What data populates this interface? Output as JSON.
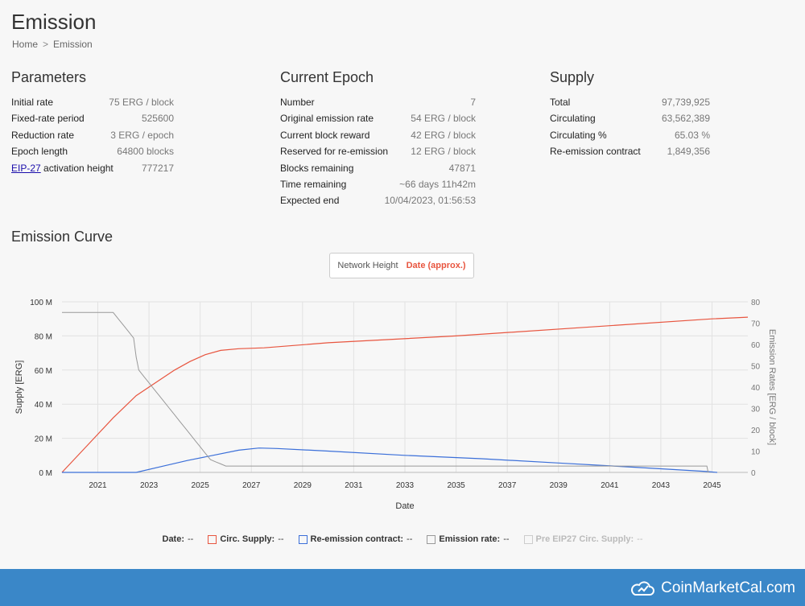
{
  "page": {
    "title": "Emission",
    "breadcrumb": [
      "Home",
      "Emission"
    ]
  },
  "parameters": {
    "title": "Parameters",
    "rows": [
      {
        "label": "Initial rate",
        "value": "75 ERG / block"
      },
      {
        "label": "Fixed-rate period",
        "value": "525600"
      },
      {
        "label": "Reduction rate",
        "value": "3 ERG / epoch"
      },
      {
        "label": "Epoch length",
        "value": "64800 blocks"
      },
      {
        "label_link": "EIP-27",
        "label_rest": " activation height",
        "value": "777217"
      }
    ]
  },
  "current_epoch": {
    "title": "Current Epoch",
    "rows": [
      {
        "label": "Number",
        "value": "7"
      },
      {
        "label": "Original emission rate",
        "value": "54 ERG / block"
      },
      {
        "label": "Current block reward",
        "value": "42 ERG / block"
      },
      {
        "label": "Reserved for re-emission",
        "value": "12 ERG / block"
      },
      {
        "label": "Blocks remaining",
        "value": "47871"
      },
      {
        "label": "Time remaining",
        "value": "~66 days 11h42m"
      },
      {
        "label": "Expected end",
        "value": "10/04/2023, 01:56:53"
      }
    ]
  },
  "supply": {
    "title": "Supply",
    "rows": [
      {
        "label": "Total",
        "value": "97,739,925"
      },
      {
        "label": "Circulating",
        "value": "63,562,389"
      },
      {
        "label": "Circulating %",
        "value": "65.03 %"
      },
      {
        "label": "Re-emission contract",
        "value": "1,849,356"
      }
    ]
  },
  "emission_curve": {
    "title": "Emission Curve",
    "toggle": {
      "options": [
        "Network Height",
        "Date (approx.)"
      ],
      "selected": "Date (approx.)"
    }
  },
  "legend": {
    "date_label": "Date:",
    "date_value": "--",
    "items": [
      {
        "label": "Circ. Supply:",
        "value": "--",
        "color": "#e8553f",
        "enabled": true
      },
      {
        "label": "Re-emission contract:",
        "value": "--",
        "color": "#3b6fd9",
        "enabled": true
      },
      {
        "label": "Emission rate:",
        "value": "--",
        "color": "#999999",
        "enabled": true
      },
      {
        "label": "Pre EIP27 Circ. Supply:",
        "value": "--",
        "color": "#cccccc",
        "enabled": false
      }
    ]
  },
  "footer": {
    "brand": "CoinMarketCal.com"
  },
  "chart_data": {
    "type": "line",
    "xlabel": "Date",
    "ylabel": "Supply [ERG]",
    "y2label": "Emission Rates [ERG / block]",
    "xlim": [
      2019.6,
      2046.4
    ],
    "ylim": [
      0,
      100
    ],
    "y2lim": [
      0,
      80
    ],
    "x_ticks": [
      "2021",
      "2023",
      "2025",
      "2027",
      "2029",
      "2031",
      "2033",
      "2035",
      "2037",
      "2039",
      "2041",
      "2043",
      "2045"
    ],
    "y_ticks": [
      "0 M",
      "20 M",
      "40 M",
      "60 M",
      "80 M",
      "100 M"
    ],
    "y2_ticks": [
      "0",
      "10",
      "20",
      "30",
      "40",
      "50",
      "60",
      "70",
      "80"
    ],
    "colors": {
      "supply": "#e8553f",
      "reemission": "#3b6fd9",
      "rate": "#999999"
    },
    "series": [
      {
        "name": "Circ. Supply",
        "axis": "left",
        "x": [
          2019.6,
          2020.6,
          2021.6,
          2022.5,
          2023.3,
          2024.0,
          2024.6,
          2025.2,
          2025.8,
          2026.5,
          2027.5,
          2030,
          2035,
          2040,
          2045,
          2046.4
        ],
        "y": [
          0,
          16,
          32,
          45,
          53,
          60,
          65,
          69,
          71.5,
          72.5,
          73,
          76,
          80,
          85,
          90,
          91
        ]
      },
      {
        "name": "Re-emission contract",
        "axis": "left",
        "x": [
          2019.6,
          2022.5,
          2023.5,
          2024.5,
          2025.5,
          2026.5,
          2027.3,
          2028,
          2030,
          2033,
          2036,
          2039,
          2042,
          2044.8,
          2045.2
        ],
        "y": [
          0,
          0,
          3.5,
          7,
          10,
          13,
          14.3,
          14,
          12.5,
          10,
          8,
          5.5,
          3,
          0.5,
          0
        ]
      },
      {
        "name": "Emission rate",
        "axis": "right",
        "x": [
          2019.6,
          2021.6,
          2021.8,
          2022.0,
          2022.2,
          2022.4,
          2022.5,
          2022.6,
          2022.8,
          2023.0,
          2023.2,
          2023.4,
          2023.6,
          2023.8,
          2024.0,
          2024.2,
          2024.4,
          2024.6,
          2024.8,
          2025.0,
          2025.2,
          2025.4,
          2025.6,
          2025.8,
          2026.0,
          2026.2,
          2044.8,
          2044.85
        ],
        "y": [
          75,
          75,
          72,
          69,
          66,
          63,
          54,
          48,
          45,
          42,
          39,
          36,
          33,
          30,
          27,
          24,
          21,
          18,
          15,
          12,
          9,
          6,
          5,
          4,
          3,
          3,
          3,
          0
        ]
      }
    ]
  }
}
